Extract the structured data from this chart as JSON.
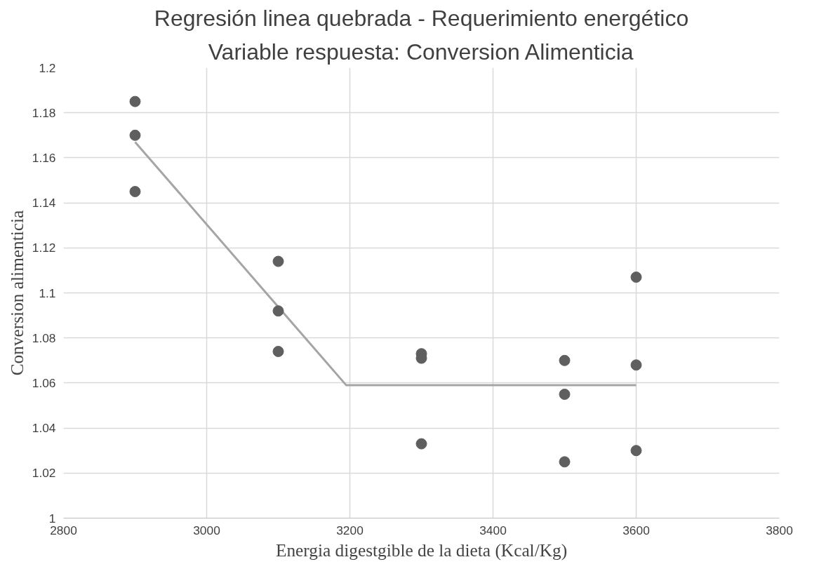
{
  "chart_data": {
    "type": "scatter",
    "title": "Regresión linea quebrada - Requerimiento energético",
    "subtitle": "Variable respuesta: Conversion Alimenticia",
    "xlabel": "Energia digestgible de la dieta (Kcal/Kg)",
    "ylabel": "Conversion alimenticia",
    "xlim": [
      2800,
      3800
    ],
    "xticks": [
      2800,
      3000,
      3200,
      3400,
      3600,
      3800
    ],
    "ylim": [
      1,
      1.2
    ],
    "yticks": [
      1,
      1.02,
      1.04,
      1.06,
      1.08,
      1.1,
      1.12,
      1.14,
      1.16,
      1.18,
      1.2
    ],
    "grid": true,
    "series": [
      {
        "type": "line",
        "color": "#a5a5a5",
        "x": [
          2900,
          3195,
          3600
        ],
        "values": [
          1.167,
          1.059,
          1.059
        ],
        "marker": "none"
      },
      {
        "color": "#5f5f5f",
        "marker": "circle",
        "x": [
          2900,
          2900,
          2900,
          3100,
          3100,
          3100,
          3300,
          3300,
          3300,
          3500,
          3500,
          3500,
          3600,
          3600,
          3600
        ],
        "values": [
          1.185,
          1.17,
          1.145,
          1.114,
          1.092,
          1.074,
          1.073,
          1.071,
          1.033,
          1.07,
          1.055,
          1.025,
          1.107,
          1.068,
          1.03
        ]
      }
    ]
  }
}
